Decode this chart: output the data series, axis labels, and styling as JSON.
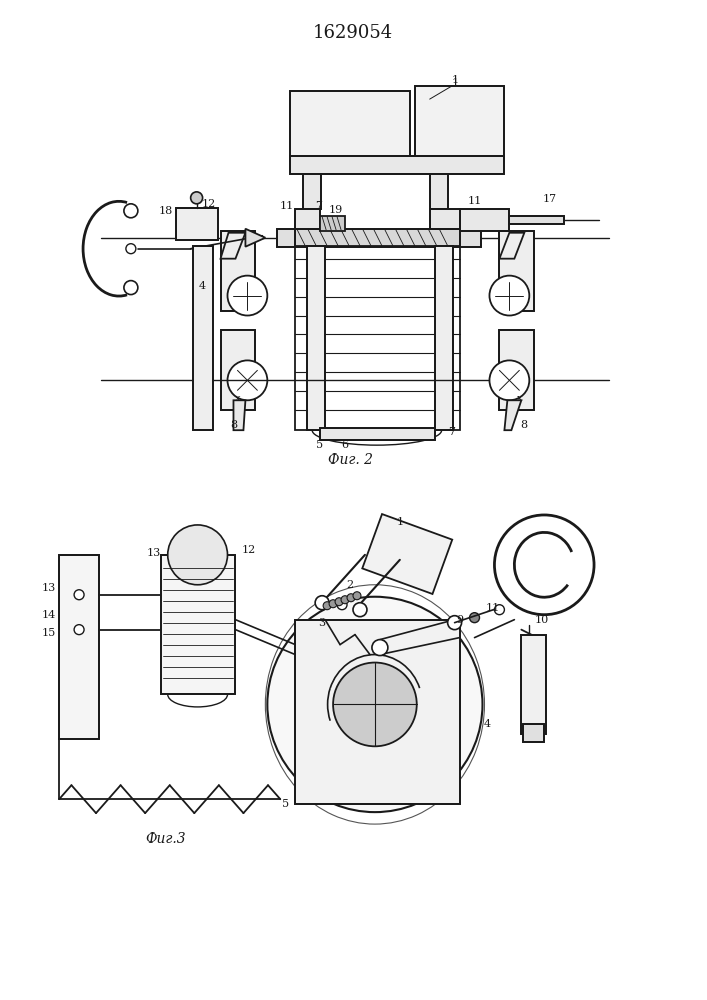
{
  "title": "1629054",
  "fig1_label": "Фиг. 2",
  "fig2_label": "Фиг.3",
  "bg_color": "#ffffff",
  "lc": "#1a1a1a",
  "lw": 1.3
}
